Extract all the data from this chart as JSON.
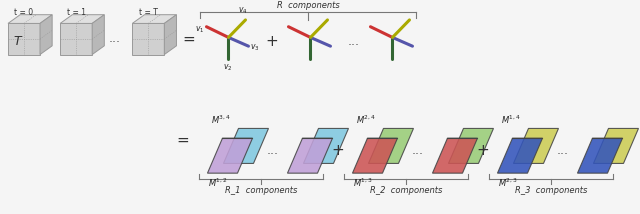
{
  "bg_color": "#f5f5f5",
  "cube_color": "#d0d0d0",
  "cube_top_color": "#e0e0e0",
  "cube_right_color": "#b8b8b8",
  "cube_edge_color": "#999999",
  "cube_labels": [
    "t = 0",
    "t = 1",
    "t = T"
  ],
  "T_label": "T",
  "vec_colors": {
    "red": "#cc3333",
    "green": "#336633",
    "blue": "#5555aa",
    "yellow": "#aaaa00"
  },
  "R_label": "R  components",
  "R1_label": "R_1  components",
  "R2_label": "R_2  components",
  "R3_label": "R_3  components",
  "M_top_labels": [
    "M^{3,4}",
    "M^{2,4}",
    "M^{1,4}"
  ],
  "M_bot_labels": [
    "M^{1,2}",
    "M^{1,3}",
    "M^{2,3}"
  ],
  "slab_colors": [
    {
      "front": "#c0a0d8",
      "back": "#80c8e0"
    },
    {
      "front": "#cc5555",
      "back": "#99cc77"
    },
    {
      "front": "#3355bb",
      "back": "#cccc55"
    }
  ]
}
